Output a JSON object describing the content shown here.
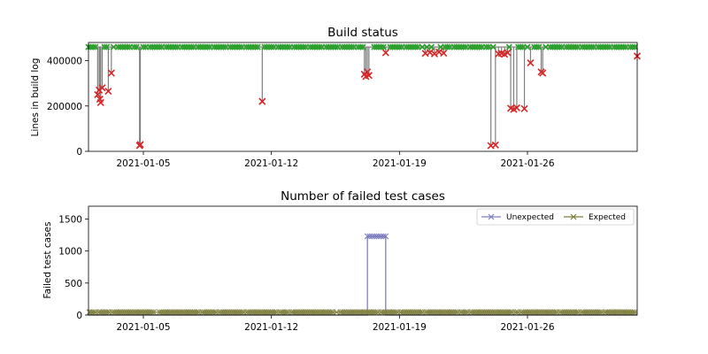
{
  "chart_data": [
    {
      "type": "line",
      "title": "Build status",
      "xlabel": "",
      "ylabel": "Lines in build log",
      "xlim": [
        "2021-01-02",
        "2021-02-01"
      ],
      "ylim": [
        0,
        480000
      ],
      "xticks": [
        "2021-01-05",
        "2021-01-12",
        "2021-01-19",
        "2021-01-26"
      ],
      "yticks": [
        0,
        200000,
        400000
      ],
      "ytick_labels": [
        "0",
        "200000",
        "400000"
      ],
      "grid": false,
      "legend": false,
      "line_color": "#808080",
      "success_color": "#2ca02c",
      "failure_color": "#d62728",
      "baseline": 460000,
      "success_range": [
        "2021-01-02",
        "2021-02-01"
      ],
      "failures": [
        {
          "date": "2021-01-02 12:00",
          "value": 250000
        },
        {
          "date": "2021-01-02 14:00",
          "value": 270000
        },
        {
          "date": "2021-01-02 15:00",
          "value": 230000
        },
        {
          "date": "2021-01-02 16:00",
          "value": 215000
        },
        {
          "date": "2021-01-02 18:00",
          "value": 280000
        },
        {
          "date": "2021-01-03 02:00",
          "value": 265000
        },
        {
          "date": "2021-01-03 06:00",
          "value": 345000
        },
        {
          "date": "2021-01-04 19:00",
          "value": 25000
        },
        {
          "date": "2021-01-04 20:00",
          "value": 30000
        },
        {
          "date": "2021-01-11 12:00",
          "value": 220000
        },
        {
          "date": "2021-01-17 02:00",
          "value": 340000
        },
        {
          "date": "2021-01-17 04:00",
          "value": 330000
        },
        {
          "date": "2021-01-17 06:00",
          "value": 350000
        },
        {
          "date": "2021-01-17 08:00",
          "value": 335000
        },
        {
          "date": "2021-01-18 06:00",
          "value": 435000
        },
        {
          "date": "2021-01-20 10:00",
          "value": 432000
        },
        {
          "date": "2021-01-20 16:00",
          "value": 436000
        },
        {
          "date": "2021-01-20 22:00",
          "value": 430000
        },
        {
          "date": "2021-01-21 04:00",
          "value": 438000
        },
        {
          "date": "2021-01-21 10:00",
          "value": 433000
        },
        {
          "date": "2021-01-24 00:00",
          "value": 25000
        },
        {
          "date": "2021-01-24 06:00",
          "value": 28000
        },
        {
          "date": "2021-01-24 10:00",
          "value": 430000
        },
        {
          "date": "2021-01-24 14:00",
          "value": 432000
        },
        {
          "date": "2021-01-24 18:00",
          "value": 428000
        },
        {
          "date": "2021-01-24 22:00",
          "value": 435000
        },
        {
          "date": "2021-01-25 02:00",
          "value": 190000
        },
        {
          "date": "2021-01-25 06:00",
          "value": 185000
        },
        {
          "date": "2021-01-25 10:00",
          "value": 192000
        },
        {
          "date": "2021-01-25 20:00",
          "value": 188000
        },
        {
          "date": "2021-01-26 04:00",
          "value": 390000
        },
        {
          "date": "2021-01-26 18:00",
          "value": 350000
        },
        {
          "date": "2021-01-26 20:00",
          "value": 345000
        },
        {
          "date": "2021-02-01 00:00",
          "value": 420000
        }
      ]
    },
    {
      "type": "line",
      "title": "Number of failed test cases",
      "xlabel": "",
      "ylabel": "Failed test cases",
      "xlim": [
        "2021-01-02",
        "2021-02-01"
      ],
      "ylim": [
        0,
        1700
      ],
      "xticks": [
        "2021-01-05",
        "2021-01-12",
        "2021-01-19",
        "2021-01-26"
      ],
      "yticks": [
        0,
        500,
        1000,
        1500
      ],
      "ytick_labels": [
        "0",
        "500",
        "1000",
        "1500"
      ],
      "grid": false,
      "legend_position": "top-right",
      "series": [
        {
          "name": "Unexpected",
          "color": "#7f7fbf",
          "baseline": 0,
          "spike": {
            "start": "2021-01-17 06:00",
            "end": "2021-01-18 06:00",
            "value": 1230
          }
        },
        {
          "name": "Expected",
          "color": "#7f7f3f",
          "baseline": 45
        }
      ]
    }
  ]
}
